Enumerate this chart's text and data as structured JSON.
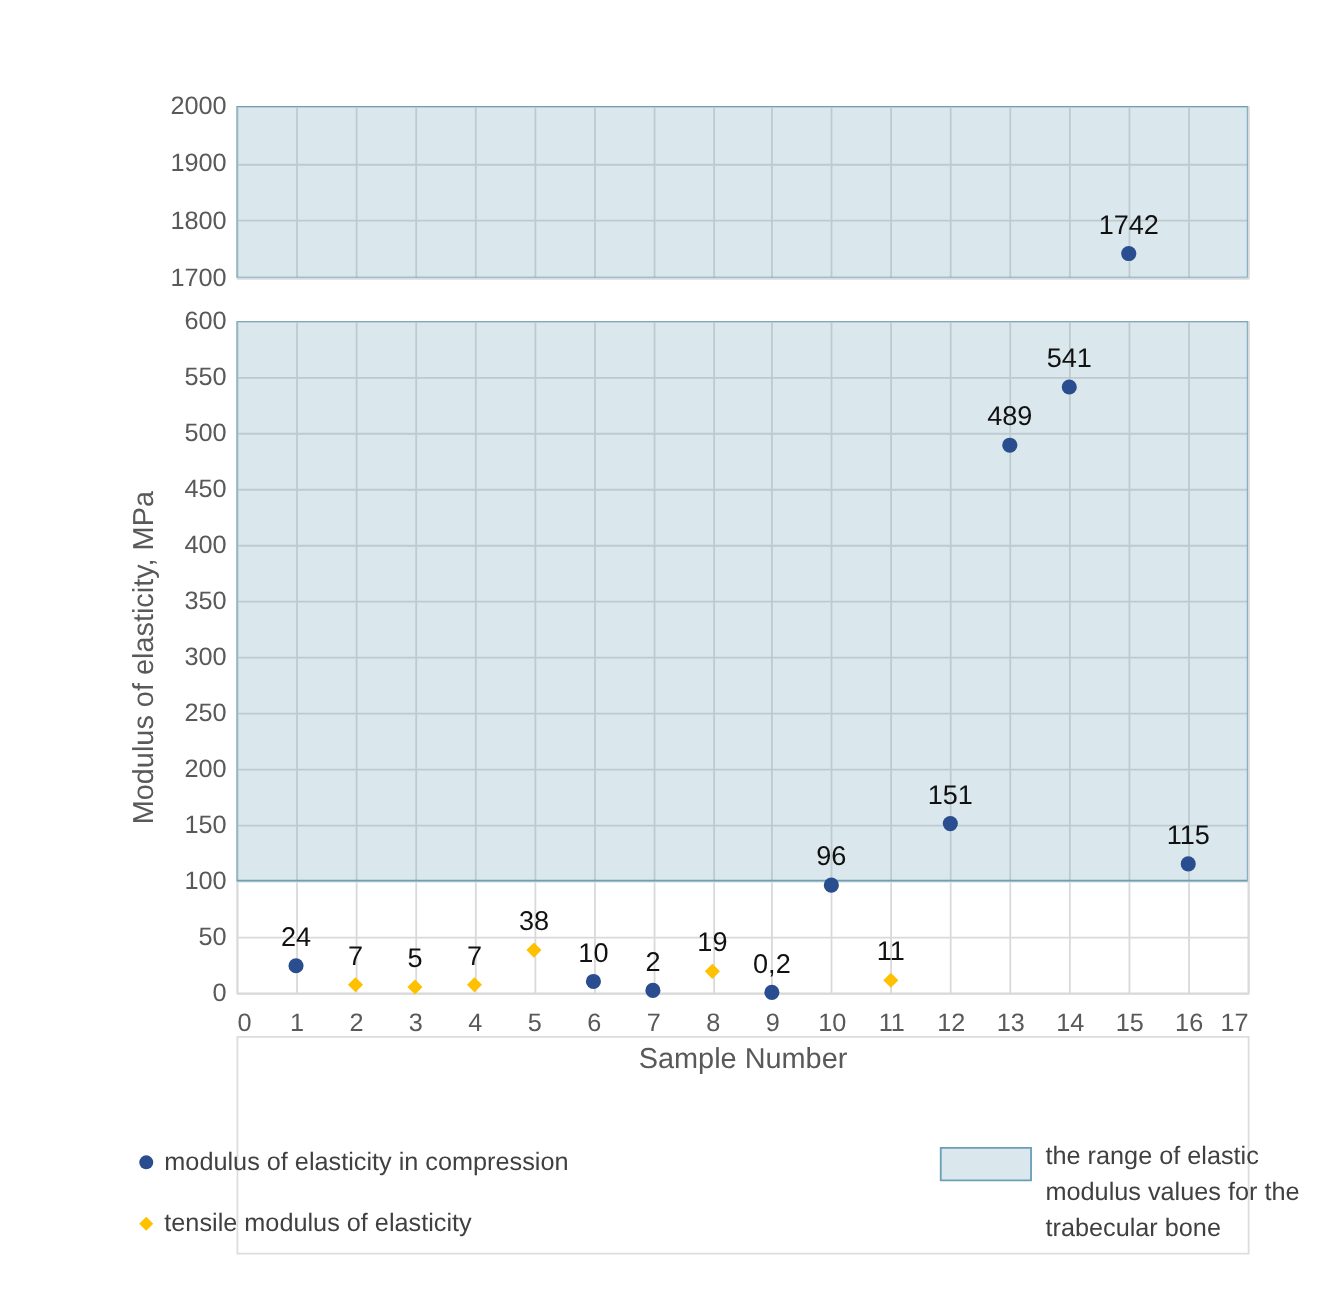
{
  "chart_data": [
    {
      "type": "scatter",
      "xlim": [
        0,
        17
      ],
      "xticks": [
        0,
        1,
        2,
        3,
        4,
        5,
        6,
        7,
        8,
        9,
        10,
        11,
        12,
        13,
        14,
        15,
        16,
        17
      ],
      "ylim": [
        1700,
        2000
      ],
      "yticks": [
        1700,
        1800,
        1900,
        2000
      ],
      "tick_labels": "y",
      "grid": true,
      "series": [
        {
          "color": "#2a4d8f",
          "marker": "circle",
          "x": [
            15
          ],
          "values": [
            1742
          ],
          "value_labels": [
            "1742"
          ]
        }
      ],
      "bands": [
        {
          "axis": "y",
          "from": 1700,
          "to": 2000,
          "color": "#6a9fb5"
        }
      ]
    },
    {
      "type": "scatter",
      "xlim": [
        0,
        17
      ],
      "xticks": [
        0,
        1,
        2,
        3,
        4,
        5,
        6,
        7,
        8,
        9,
        10,
        11,
        12,
        13,
        14,
        15,
        16,
        17
      ],
      "ylim": [
        0,
        600
      ],
      "yticks": [
        0,
        50,
        100,
        150,
        200,
        250,
        300,
        350,
        400,
        450,
        500,
        550,
        600
      ],
      "grid": true,
      "xlabel": "Sample Number",
      "ylabel": "Modulus of elasticity, MPa",
      "legend": "bottom",
      "series": [
        {
          "name": "modulus of elasticity in compression",
          "color": "#2a4d8f",
          "marker": "circle",
          "x": [
            1,
            6,
            7,
            9,
            10,
            12,
            13,
            14,
            16
          ],
          "values": [
            24,
            10,
            2,
            0.2,
            96,
            151,
            489,
            541,
            115
          ],
          "value_labels": [
            "24",
            "10",
            "2",
            "0,2",
            "96",
            "151",
            "489",
            "541",
            "115"
          ]
        },
        {
          "name": "tensile modulus of elasticity",
          "color": "#ffc000",
          "marker": "diamond",
          "x": [
            2,
            3,
            4,
            5,
            8,
            11
          ],
          "values": [
            7,
            5,
            7,
            38,
            19,
            11
          ],
          "value_labels": [
            "7",
            "5",
            "7",
            "38",
            "19",
            "11"
          ]
        }
      ],
      "bands": [
        {
          "axis": "y",
          "from": 100,
          "to": 600,
          "color": "#6a9fb5",
          "label": "the range of elastic modulus values for the trabecular bone"
        }
      ]
    }
  ]
}
